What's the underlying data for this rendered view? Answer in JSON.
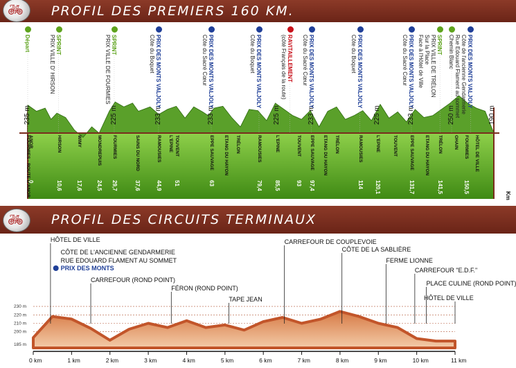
{
  "header1": {
    "title": "PROFIL DES PREMIERS 160 KM."
  },
  "header2": {
    "title": "PROFIL DES CIRCUITS TERMINAUX"
  },
  "colors": {
    "brown": "#7a2d1e",
    "green": "#5ea31d",
    "blue": "#1f3f98",
    "red": "#c8101a",
    "orange": "#c8552c"
  },
  "chart_data": [
    {
      "type": "area",
      "title": "PROFIL DES PREMIERS 160 KM.",
      "x_unit": "Km",
      "profile_x_km": [
        0,
        3,
        6,
        8,
        10,
        13,
        16,
        19,
        22,
        24.5,
        28,
        30,
        33,
        36,
        38,
        42,
        45,
        48,
        51,
        54,
        57,
        60,
        62,
        64,
        67,
        70,
        73,
        76,
        79,
        82,
        85,
        88,
        91,
        94,
        97,
        100,
        103,
        106,
        109,
        112,
        115,
        118,
        121,
        124,
        127,
        130,
        133,
        136,
        139,
        142,
        145,
        148,
        151,
        154,
        157,
        160
      ],
      "profile_y_m": [
        235,
        225,
        230,
        212,
        222,
        215,
        195,
        183,
        200,
        190,
        225,
        240,
        232,
        238,
        225,
        232,
        220,
        228,
        233,
        214,
        232,
        224,
        218,
        230,
        233,
        215,
        200,
        228,
        226,
        210,
        238,
        228,
        218,
        212,
        226,
        200,
        225,
        232,
        212,
        218,
        226,
        210,
        236,
        214,
        224,
        208,
        228,
        215,
        218,
        228,
        238,
        250,
        238,
        230,
        225,
        190
      ],
      "altitude_labels": [
        {
          "km": 0,
          "label": "235 m"
        },
        {
          "km": 29.7,
          "label": "225 m"
        },
        {
          "km": 44.9,
          "label": "233 m"
        },
        {
          "km": 63,
          "label": "233 m"
        },
        {
          "km": 85.5,
          "label": "225 m"
        },
        {
          "km": 97.4,
          "label": "233 m"
        },
        {
          "km": 120.1,
          "label": "225 m"
        },
        {
          "km": 131.7,
          "label": "233 m"
        },
        {
          "km": 145.5,
          "label": "250 m"
        },
        {
          "km": 160,
          "label": "190 m"
        }
      ],
      "towns": [
        {
          "name": "FOURMIES - ROUTE D'ANOR",
          "km_label": "",
          "dx": 0
        },
        {
          "name": "ANOR",
          "km_label": "0",
          "dx": 1
        },
        {
          "name": "HIRSON",
          "km_label": "10,6",
          "dx": 10.6
        },
        {
          "name": "WIMY",
          "km_label": "17,6",
          "dx": 17.6
        },
        {
          "name": "MONDREPUIS",
          "km_label": "24,5",
          "dx": 24.5
        },
        {
          "name": "FOURMIES",
          "km_label": "29,7",
          "dx": 29.7
        },
        {
          "name": "SAINS DU NORD",
          "km_label": "37,6",
          "dx": 37.6
        },
        {
          "name": "RAMOUSIES",
          "km_label": "44,9",
          "dx": 44.9
        },
        {
          "name": "TOUVENT",
          "km_label": "51",
          "dx": 51
        },
        {
          "name": "L'EPINE",
          "km_label": "",
          "dx": 49
        },
        {
          "name": "EPPE SAUVAGE",
          "km_label": "63",
          "dx": 63
        },
        {
          "name": "ETANG DU HAYON",
          "km_label": "",
          "dx": 68
        },
        {
          "name": "TRÉLON",
          "km_label": "",
          "dx": 72
        },
        {
          "name": "RAMOUSIES",
          "km_label": "79,4",
          "dx": 79.4
        },
        {
          "name": "L'EPINE",
          "km_label": "85,5",
          "dx": 85.5
        },
        {
          "name": "TOUVENT",
          "km_label": "93",
          "dx": 93
        },
        {
          "name": "EPPE SAUVAGE",
          "km_label": "97,4",
          "dx": 97.4
        },
        {
          "name": "ETANG DU HAYON",
          "km_label": "",
          "dx": 102
        },
        {
          "name": "TRÉLON",
          "km_label": "",
          "dx": 106
        },
        {
          "name": "RAMOUSIES",
          "km_label": "114",
          "dx": 114
        },
        {
          "name": "L'EPINE",
          "km_label": "120,1",
          "dx": 120.1
        },
        {
          "name": "TOUVENT",
          "km_label": "",
          "dx": 126
        },
        {
          "name": "EPPE SAUVAGE",
          "km_label": "131,7",
          "dx": 131.7
        },
        {
          "name": "ETANG DU HAYON",
          "km_label": "",
          "dx": 137
        },
        {
          "name": "TRÉLON",
          "km_label": "141,5",
          "dx": 141.5
        },
        {
          "name": "OHAIN",
          "km_label": "",
          "dx": 147
        },
        {
          "name": "FOURMIES",
          "km_label": "150,5",
          "dx": 150.5
        },
        {
          "name": "HÔTEL DE VILLE",
          "km_label": "",
          "dx": 154
        }
      ],
      "top_labels": [
        {
          "kind": "green",
          "dx": 0,
          "lines": [
            "Départ"
          ]
        },
        {
          "kind": "green",
          "dx": 10.6,
          "lines": [
            "SPRINT",
            "PRIX VILLE D' HIRSON"
          ]
        },
        {
          "kind": "green",
          "dx": 29.7,
          "lines": [
            "SPRINT",
            "PRIX VILLE DE FOURMIES"
          ]
        },
        {
          "kind": "blue",
          "dx": 44.9,
          "lines": [
            "PRIX DES MONTS VALJOLY",
            "Côte du Boquet"
          ]
        },
        {
          "kind": "blue",
          "dx": 63,
          "lines": [
            "PRIX DES MONTS VALJOLY",
            "Côte du Sacré Cœur"
          ]
        },
        {
          "kind": "blue",
          "dx": 79.4,
          "lines": [
            "PRIX DES MONTS VALJOLY",
            "Côte du Boquet"
          ]
        },
        {
          "kind": "red",
          "dx": 90,
          "lines": [
            "RAVITAILLEMENT",
            "(côté Français de la route)"
          ]
        },
        {
          "kind": "blue",
          "dx": 97.4,
          "lines": [
            "PRIX DES MONTS VALJOLY",
            "Côte du Sacré Cœur"
          ]
        },
        {
          "kind": "blue",
          "dx": 114,
          "lines": [
            "PRIX DES MONTS VALJOLY",
            "Côte du Boquet"
          ]
        },
        {
          "kind": "blue",
          "dx": 131.7,
          "lines": [
            "PRIX DES MONTS VALJOLY",
            "Côte du Sacré Cœur"
          ]
        },
        {
          "kind": "green",
          "dx": 141.5,
          "lines": [
            "SPRINT",
            "PRIX VILLE DE TRÉLON",
            "Sur la Place",
            "Face à l'Hôtel de Ville"
          ]
        },
        {
          "kind": "black",
          "dx": 145.5,
          "lines": [
            "Chemin Blanc"
          ]
        },
        {
          "kind": "blue",
          "dx": 152,
          "lines": [
            "PRIX DES MONTS VALJOLY",
            "Côte de l'ancienne Gendarmerie",
            "Rue Edouard Flament au sommet"
          ]
        }
      ]
    },
    {
      "type": "area",
      "title": "PROFIL DES CIRCUITS TERMINAUX",
      "x_ticks": [
        "0 km",
        "1 km",
        "2 km",
        "3 km",
        "4 km",
        "5 km",
        "6 km",
        "7 km",
        "8 km",
        "9 km",
        "10 km",
        "11 km"
      ],
      "y_ticks": [
        "230 m",
        "220 m",
        "210 m",
        "200 m",
        "185 m"
      ],
      "xlim": [
        0,
        11
      ],
      "ylim": [
        180,
        235
      ],
      "x_km": [
        0,
        0.5,
        1,
        1.5,
        2,
        2.5,
        3,
        3.5,
        4,
        4.5,
        5,
        5.5,
        6,
        6.5,
        7,
        7.5,
        8,
        8.5,
        9,
        9.5,
        10,
        10.5,
        11
      ],
      "y_m": [
        193,
        218,
        215,
        204,
        190,
        203,
        210,
        205,
        213,
        205,
        208,
        202,
        212,
        217,
        210,
        215,
        224,
        218,
        210,
        205,
        192,
        189,
        189
      ],
      "annotations": [
        {
          "x": 0.3,
          "text": "HÔTEL DE VILLE"
        },
        {
          "x": 0.5,
          "text": "CÔTE DE L'ANCIENNE GENDARMERIE"
        },
        {
          "x": 0.5,
          "text": "RUE EDOUARD FLAMENT AU SOMMET"
        },
        {
          "x": 0.5,
          "text": "PRIX DES MONTS"
        },
        {
          "x": 1.5,
          "text": "CARREFOUR (ROND POINT)"
        },
        {
          "x": 3.5,
          "text": "FÉRON (ROND POINT)"
        },
        {
          "x": 5,
          "text": "TAPE JEAN"
        },
        {
          "x": 6.5,
          "text": "CARREFOUR DE COUPLEVOIE"
        },
        {
          "x": 8,
          "text": "CÔTE DE LA SABLIÈRE"
        },
        {
          "x": 9.2,
          "text": "FERME LIONNE"
        },
        {
          "x": 9.8,
          "text": "CARREFOUR \"E.D.F.\""
        },
        {
          "x": 10.2,
          "text": "PLACE CULINE (ROND POINT)"
        },
        {
          "x": 11,
          "text": "HÔTEL DE VILLE"
        }
      ]
    }
  ]
}
